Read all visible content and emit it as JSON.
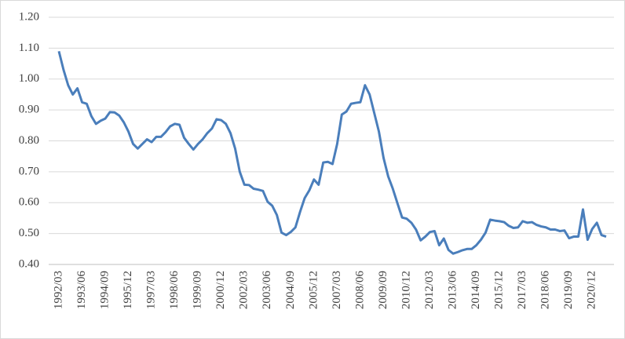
{
  "chart_data": {
    "type": "line",
    "categories": [
      "1992/03",
      null,
      null,
      null,
      null,
      "1993/06",
      null,
      null,
      null,
      null,
      "1994/09",
      null,
      null,
      null,
      null,
      "1995/12",
      null,
      null,
      null,
      null,
      "1997/03",
      null,
      null,
      null,
      null,
      "1998/06",
      null,
      null,
      null,
      null,
      "1999/09",
      null,
      null,
      null,
      null,
      "2000/12",
      null,
      null,
      null,
      null,
      "2002/03",
      null,
      null,
      null,
      null,
      "2003/06",
      null,
      null,
      null,
      null,
      "2004/09",
      null,
      null,
      null,
      null,
      "2005/12",
      null,
      null,
      null,
      null,
      "2007/03",
      null,
      null,
      null,
      null,
      "2008/06",
      null,
      null,
      null,
      null,
      "2009/09",
      null,
      null,
      null,
      null,
      "2010/12",
      null,
      null,
      null,
      null,
      "2012/03",
      null,
      null,
      null,
      null,
      "2013/06",
      null,
      null,
      null,
      null,
      "2014/09",
      null,
      null,
      null,
      null,
      "2015/12",
      null,
      null,
      null,
      null,
      "2017/03",
      null,
      null,
      null,
      null,
      "2018/06",
      null,
      null,
      null,
      null,
      "2019/09",
      null,
      null,
      null,
      null,
      "2020/12",
      null,
      null,
      null
    ],
    "series": [
      {
        "color": "#4a7ebb",
        "values": [
          1.09,
          1.03,
          0.98,
          0.95,
          0.97,
          0.925,
          0.92,
          0.88,
          0.855,
          0.865,
          0.872,
          0.893,
          0.892,
          0.882,
          0.86,
          0.83,
          0.79,
          0.775,
          0.79,
          0.805,
          0.796,
          0.813,
          0.813,
          0.828,
          0.847,
          0.855,
          0.852,
          0.81,
          0.79,
          0.772,
          0.79,
          0.805,
          0.825,
          0.84,
          0.87,
          0.867,
          0.855,
          0.825,
          0.775,
          0.7,
          0.658,
          0.657,
          0.645,
          0.642,
          0.638,
          0.603,
          0.59,
          0.56,
          0.503,
          0.495,
          0.505,
          0.52,
          0.57,
          0.615,
          0.64,
          0.675,
          0.658,
          0.73,
          0.732,
          0.725,
          0.79,
          0.885,
          0.895,
          0.92,
          0.923,
          0.925,
          0.98,
          0.95,
          0.89,
          0.83,
          0.745,
          0.685,
          0.645,
          0.598,
          0.552,
          0.548,
          0.535,
          0.513,
          0.478,
          0.49,
          0.505,
          0.508,
          0.462,
          0.484,
          0.447,
          0.435,
          0.44,
          0.446,
          0.45,
          0.45,
          0.462,
          0.48,
          0.503,
          0.545,
          0.542,
          0.54,
          0.537,
          0.525,
          0.518,
          0.52,
          0.54,
          0.535,
          0.537,
          0.528,
          0.523,
          0.52,
          0.513,
          0.513,
          0.508,
          0.51,
          0.485,
          0.49,
          0.49,
          0.578,
          0.48,
          0.515,
          0.535,
          0.495,
          0.49
        ]
      }
    ],
    "ylim": [
      0.4,
      1.2
    ],
    "yticks": [
      {
        "value": 0.4,
        "label": "0.40"
      },
      {
        "value": 0.5,
        "label": "0.50"
      },
      {
        "value": 0.6,
        "label": "0.60"
      },
      {
        "value": 0.7,
        "label": "0.70"
      },
      {
        "value": 0.8,
        "label": "0.80"
      },
      {
        "value": 0.9,
        "label": "0.90"
      },
      {
        "value": 1.0,
        "label": "1.00"
      },
      {
        "value": 1.1,
        "label": "1.10"
      },
      {
        "value": 1.2,
        "label": "1.20"
      }
    ],
    "grid": true
  }
}
